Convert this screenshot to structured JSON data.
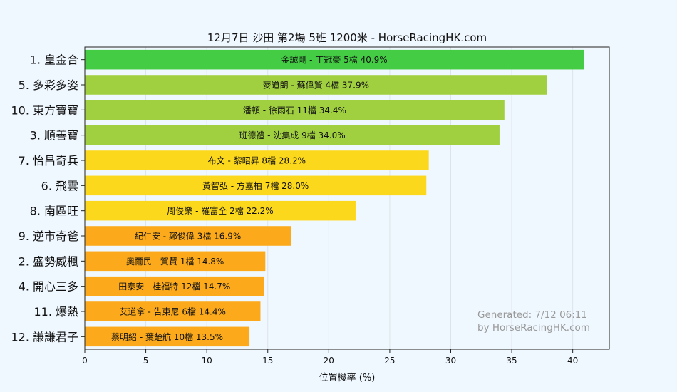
{
  "chart_data": {
    "type": "bar",
    "orientation": "horizontal",
    "title": "12月7日  沙田  第2場  5班  1200米 - HorseRacingHK.com",
    "xlabel": "位置機率 (%)",
    "ylabel": "",
    "xlim": [
      0,
      43
    ],
    "xticks": [
      0,
      5,
      10,
      15,
      20,
      25,
      30,
      35,
      40
    ],
    "grid": "vertical",
    "categories": [
      "1. 皇金合",
      "5. 多彩多姿",
      "10. 東方寶寶",
      "3. 順善寶",
      "7. 怡昌奇兵",
      "6. 飛雲",
      "8. 南區旺",
      "9. 逆市奇爸",
      "2. 盛勢威楓",
      "4. 開心三多",
      "11. 爆熱",
      "12. 謙謙君子"
    ],
    "values": [
      40.9,
      37.9,
      34.4,
      34.0,
      28.2,
      28.0,
      22.2,
      16.9,
      14.8,
      14.7,
      14.4,
      13.5
    ],
    "bar_labels": [
      "金誠剛 - 丁冠豪 5檔  40.9%",
      "麥道朗 - 蘇偉賢 4檔  37.9%",
      "潘頓 - 徐雨石 11檔  34.4%",
      "班德禮 - 沈集成 9檔  34.0%",
      "布文 - 黎昭昇 8檔  28.2%",
      "黃智弘 - 方嘉柏 7檔  28.0%",
      "周俊樂 - 羅富全 2檔  22.2%",
      "紀仁安 - 鄭俊偉 3檔  16.9%",
      "奧爾民 - 賀賢 1檔  14.8%",
      "田泰安 - 桂福特 12檔  14.7%",
      "艾道拿 - 告東尼 6檔  14.4%",
      "蔡明紹 - 葉楚航 10檔  13.5%"
    ],
    "colors": [
      "#44cc44",
      "#a0d040",
      "#a0d040",
      "#a0d040",
      "#fcd81c",
      "#fcd81c",
      "#fcd81c",
      "#fcaa1c",
      "#fcaa1c",
      "#fcaa1c",
      "#fcaa1c",
      "#fcaa1c"
    ],
    "background": "#f0f8ff",
    "watermark": [
      "Generated: 7/12 06:11",
      "by HorseRacingHK.com"
    ]
  }
}
